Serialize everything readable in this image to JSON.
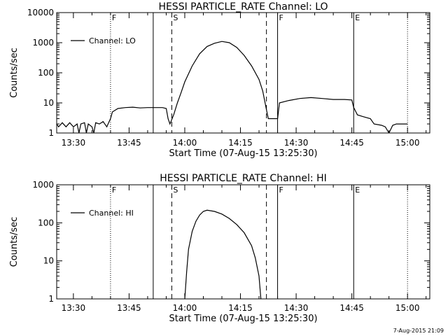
{
  "footer": {
    "stamp": "7-Aug-2015 21:09"
  },
  "colors": {
    "line": "#000000",
    "background": "#ffffff"
  },
  "chart_data": [
    {
      "type": "line",
      "title": "HESSI PARTICLE_RATE Channel: LO",
      "xlabel": "Start Time (07-Aug-15 13:25:30)",
      "ylabel": "Counts/sec",
      "yscale": "log",
      "ylim": [
        1,
        10000
      ],
      "xlim": [
        "13:25:30",
        "15:06:00"
      ],
      "xticks": [
        "13:30",
        "13:45",
        "14:00",
        "14:15",
        "14:30",
        "14:45",
        "15:00"
      ],
      "yticks": [
        "1",
        "10",
        "100",
        "1000",
        "10000"
      ],
      "legend": {
        "position": "top-left",
        "label": "Channel: LO"
      },
      "grid": false,
      "series": [
        {
          "name": "Channel: LO",
          "points": [
            [
              "13:25:30",
              2
            ],
            [
              "13:26:00",
              1.6
            ],
            [
              "13:27:00",
              2.2
            ],
            [
              "13:28:00",
              1.6
            ],
            [
              "13:29:00",
              2.2
            ],
            [
              "13:30:00",
              1.6
            ],
            [
              "13:31:00",
              2
            ],
            [
              "13:31:30",
              1
            ],
            [
              "13:32:00",
              2
            ],
            [
              "13:33:00",
              2.2
            ],
            [
              "13:33:30",
              1
            ],
            [
              "13:34:00",
              2
            ],
            [
              "13:35:00",
              1.6
            ],
            [
              "13:35:30",
              1
            ],
            [
              "13:36:00",
              2.2
            ],
            [
              "13:37:00",
              2
            ],
            [
              "13:38:00",
              2.4
            ],
            [
              "13:39:00",
              1.6
            ],
            [
              "13:39:30",
              2.2
            ],
            [
              "13:40:00",
              3
            ],
            [
              "13:40:30",
              5
            ],
            [
              "13:42:00",
              6.5
            ],
            [
              "13:44:00",
              7
            ],
            [
              "13:46:00",
              7.2
            ],
            [
              "13:48:00",
              6.8
            ],
            [
              "13:50:00",
              7
            ],
            [
              "13:52:00",
              7
            ],
            [
              "13:54:00",
              7
            ],
            [
              "13:55:00",
              6.5
            ],
            [
              "13:55:30",
              3
            ],
            [
              "13:56:00",
              2
            ],
            [
              "13:57:00",
              4
            ],
            [
              "13:58:00",
              10
            ],
            [
              "13:59:00",
              22
            ],
            [
              "14:00:00",
              50
            ],
            [
              "14:02:00",
              170
            ],
            [
              "14:04:00",
              430
            ],
            [
              "14:06:00",
              750
            ],
            [
              "14:08:00",
              960
            ],
            [
              "14:10:00",
              1100
            ],
            [
              "14:12:00",
              1000
            ],
            [
              "14:14:00",
              700
            ],
            [
              "14:16:00",
              380
            ],
            [
              "14:18:00",
              170
            ],
            [
              "14:20:00",
              60
            ],
            [
              "14:21:00",
              25
            ],
            [
              "14:22:00",
              6
            ],
            [
              "14:22:30",
              3
            ],
            [
              "14:25:00",
              3
            ],
            [
              "14:25:30",
              10
            ],
            [
              "14:28:00",
              12
            ],
            [
              "14:31:00",
              14
            ],
            [
              "14:34:00",
              15
            ],
            [
              "14:37:00",
              14
            ],
            [
              "14:40:00",
              13
            ],
            [
              "14:43:00",
              13
            ],
            [
              "14:45:00",
              12.5
            ],
            [
              "14:45:30",
              7
            ],
            [
              "14:46:30",
              4
            ],
            [
              "14:48:00",
              3.5
            ],
            [
              "14:50:00",
              3
            ],
            [
              "14:51:00",
              2
            ],
            [
              "14:53:00",
              1.8
            ],
            [
              "14:54:00",
              1.6
            ],
            [
              "14:55:00",
              1
            ],
            [
              "14:56:00",
              1.8
            ],
            [
              "14:57:00",
              2
            ],
            [
              "15:00:00",
              2
            ]
          ]
        }
      ],
      "markers": [
        {
          "time": "13:40:00",
          "label": "F",
          "style": "dotted"
        },
        {
          "time": "13:51:30",
          "label": "",
          "style": "solid"
        },
        {
          "time": "13:56:30",
          "label": "S",
          "style": "dashed"
        },
        {
          "time": "14:22:00",
          "label": "",
          "style": "dashed"
        },
        {
          "time": "14:25:00",
          "label": "F",
          "style": "solid"
        },
        {
          "time": "14:45:30",
          "label": "E",
          "style": "solid"
        },
        {
          "time": "15:00:00",
          "label": "",
          "style": "dotted"
        }
      ]
    },
    {
      "type": "line",
      "title": "HESSI PARTICLE_RATE Channel: HI",
      "xlabel": "Start Time (07-Aug-15 13:25:30)",
      "ylabel": "Counts/sec",
      "yscale": "log",
      "ylim": [
        1,
        1000
      ],
      "xlim": [
        "13:25:30",
        "15:06:00"
      ],
      "xticks": [
        "13:30",
        "13:45",
        "14:00",
        "14:15",
        "14:30",
        "14:45",
        "15:00"
      ],
      "yticks": [
        "1",
        "10",
        "100",
        "1000"
      ],
      "legend": {
        "position": "top-left",
        "label": "Channel: HI"
      },
      "grid": false,
      "series": [
        {
          "name": "Channel: HI",
          "points": [
            [
              "14:00:00",
              1
            ],
            [
              "14:00:30",
              5
            ],
            [
              "14:01:00",
              20
            ],
            [
              "14:02:00",
              60
            ],
            [
              "14:03:00",
              110
            ],
            [
              "14:04:00",
              160
            ],
            [
              "14:05:00",
              200
            ],
            [
              "14:06:00",
              215
            ],
            [
              "14:08:00",
              200
            ],
            [
              "14:10:00",
              170
            ],
            [
              "14:12:00",
              130
            ],
            [
              "14:14:00",
              90
            ],
            [
              "14:16:00",
              55
            ],
            [
              "14:18:00",
              25
            ],
            [
              "14:19:00",
              12
            ],
            [
              "14:20:00",
              4
            ],
            [
              "14:20:30",
              1
            ]
          ]
        }
      ],
      "markers": [
        {
          "time": "13:40:00",
          "label": "F",
          "style": "dotted"
        },
        {
          "time": "13:51:30",
          "label": "",
          "style": "solid"
        },
        {
          "time": "13:56:30",
          "label": "S",
          "style": "dashed"
        },
        {
          "time": "14:22:00",
          "label": "",
          "style": "dashed"
        },
        {
          "time": "14:25:00",
          "label": "F",
          "style": "solid"
        },
        {
          "time": "14:45:30",
          "label": "E",
          "style": "solid"
        },
        {
          "time": "15:00:00",
          "label": "",
          "style": "dotted"
        }
      ]
    }
  ]
}
